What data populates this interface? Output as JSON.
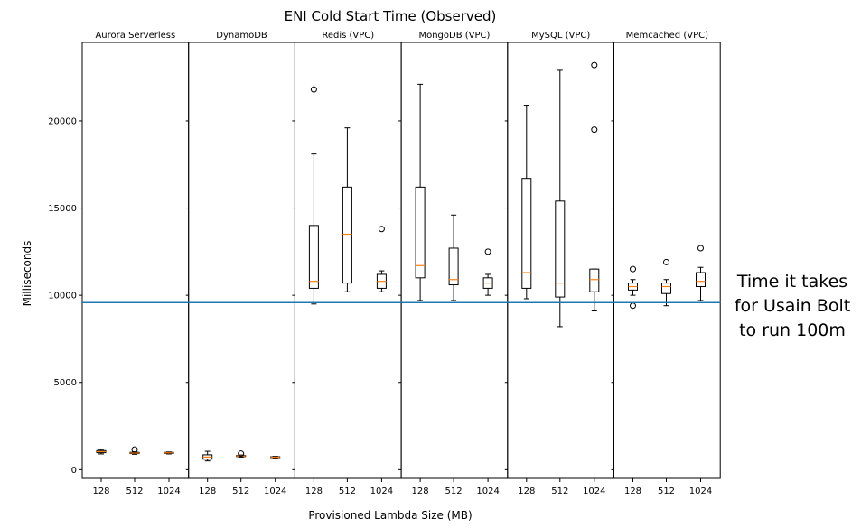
{
  "chart_data": {
    "type": "box",
    "title": "ENI Cold Start Time (Observed)",
    "xlabel": "Provisioned Lambda Size (MB)",
    "ylabel": "Milliseconds",
    "ylim": [
      -500,
      24500
    ],
    "yticks": [
      0,
      5000,
      10000,
      15000,
      20000
    ],
    "categories": [
      "128",
      "512",
      "1024"
    ],
    "reference_line": {
      "value": 9580,
      "color": "#1f77b4"
    },
    "annotation": [
      "Time it takes",
      "for Usain Bolt",
      "to run 100m"
    ],
    "colors": {
      "box": "#000000",
      "median": "#ff7f0e"
    },
    "panels": [
      {
        "name": "Aurora Serverless",
        "boxes": [
          {
            "category": "128",
            "whislo": 900,
            "q1": 970,
            "med": 1030,
            "q3": 1090,
            "whishi": 1150,
            "fliers": []
          },
          {
            "category": "512",
            "whislo": 880,
            "q1": 920,
            "med": 950,
            "q3": 990,
            "whishi": 1020,
            "fliers": [
              1150
            ]
          },
          {
            "category": "1024",
            "whislo": 900,
            "q1": 930,
            "med": 960,
            "q3": 990,
            "whishi": 1010,
            "fliers": []
          }
        ]
      },
      {
        "name": "DynamoDB",
        "boxes": [
          {
            "category": "128",
            "whislo": 500,
            "q1": 600,
            "med": 720,
            "q3": 850,
            "whishi": 1050,
            "fliers": []
          },
          {
            "category": "512",
            "whislo": 720,
            "q1": 750,
            "med": 780,
            "q3": 810,
            "whishi": 840,
            "fliers": [
              920
            ]
          },
          {
            "category": "1024",
            "whislo": 660,
            "q1": 690,
            "med": 710,
            "q3": 740,
            "whishi": 760,
            "fliers": []
          }
        ]
      },
      {
        "name": "Redis (VPC)",
        "boxes": [
          {
            "category": "128",
            "whislo": 9500,
            "q1": 10400,
            "med": 10800,
            "q3": 14000,
            "whishi": 18100,
            "fliers": [
              21800
            ]
          },
          {
            "category": "512",
            "whislo": 10200,
            "q1": 10700,
            "med": 13500,
            "q3": 16200,
            "whishi": 19600,
            "fliers": []
          },
          {
            "category": "1024",
            "whislo": 10200,
            "q1": 10400,
            "med": 10800,
            "q3": 11200,
            "whishi": 11400,
            "fliers": [
              13800
            ]
          }
        ]
      },
      {
        "name": "MongoDB (VPC)",
        "boxes": [
          {
            "category": "128",
            "whislo": 9700,
            "q1": 11000,
            "med": 11700,
            "q3": 16200,
            "whishi": 22100,
            "fliers": []
          },
          {
            "category": "512",
            "whislo": 9700,
            "q1": 10600,
            "med": 10900,
            "q3": 12700,
            "whishi": 14600,
            "fliers": []
          },
          {
            "category": "1024",
            "whislo": 10000,
            "q1": 10400,
            "med": 10700,
            "q3": 11000,
            "whishi": 11200,
            "fliers": [
              12500
            ]
          }
        ]
      },
      {
        "name": "MySQL (VPC)",
        "boxes": [
          {
            "category": "128",
            "whislo": 9800,
            "q1": 10400,
            "med": 11300,
            "q3": 16700,
            "whishi": 20900,
            "fliers": []
          },
          {
            "category": "512",
            "whislo": 8200,
            "q1": 9900,
            "med": 10700,
            "q3": 15400,
            "whishi": 22900,
            "fliers": []
          },
          {
            "category": "1024",
            "whislo": 9100,
            "q1": 10200,
            "med": 10900,
            "q3": 11500,
            "whishi": 11500,
            "fliers": [
              19500,
              23200
            ]
          }
        ]
      },
      {
        "name": "Memcached (VPC)",
        "boxes": [
          {
            "category": "128",
            "whislo": 10000,
            "q1": 10300,
            "med": 10500,
            "q3": 10700,
            "whishi": 10900,
            "fliers": [
              9400,
              11500
            ]
          },
          {
            "category": "512",
            "whislo": 9400,
            "q1": 10100,
            "med": 10500,
            "q3": 10700,
            "whishi": 10900,
            "fliers": [
              11900
            ]
          },
          {
            "category": "1024",
            "whislo": 9700,
            "q1": 10500,
            "med": 10800,
            "q3": 11300,
            "whishi": 11600,
            "fliers": [
              12700
            ]
          }
        ]
      }
    ]
  }
}
